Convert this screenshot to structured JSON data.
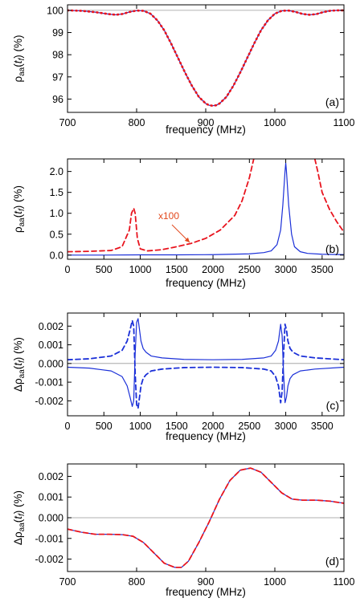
{
  "colors": {
    "red": "#e8141e",
    "blue": "#1a2fd8",
    "annotation": "#e2481c",
    "axis": "#000000",
    "zero": "#999999"
  },
  "chart_data": [
    {
      "id": "a",
      "type": "line",
      "panel_label": "(a)",
      "xlabel": "frequency (MHz)",
      "ylabel_html": "ρ<sub>aa</sub>(<i>t<sub>f</sub></i>) (%)",
      "ylabel": "ρaa(tf) (%)",
      "xlim": [
        700,
        1100
      ],
      "ylim": [
        95.4,
        100.25
      ],
      "xticks": [
        700,
        800,
        900,
        1000,
        1100
      ],
      "yticks": [
        96,
        97,
        98,
        99,
        100
      ],
      "xtick_labels": [
        "700",
        "800",
        "900",
        "1000",
        "1100"
      ],
      "ytick_labels": [
        "96",
        "97",
        "98",
        "99",
        "100"
      ],
      "refline": 100,
      "series": [
        {
          "style": "solid-blue",
          "x": [
            700,
            720,
            740,
            760,
            770,
            780,
            790,
            800,
            810,
            820,
            830,
            840,
            850,
            860,
            870,
            880,
            890,
            900,
            905,
            910,
            915,
            920,
            930,
            940,
            950,
            960,
            970,
            980,
            990,
            1000,
            1010,
            1020,
            1030,
            1040,
            1050,
            1060,
            1070,
            1080,
            1090,
            1100
          ],
          "values": [
            100,
            99.98,
            99.92,
            99.83,
            99.8,
            99.84,
            99.93,
            99.99,
            99.98,
            99.85,
            99.55,
            99.1,
            98.5,
            97.85,
            97.2,
            96.6,
            96.1,
            95.8,
            95.72,
            95.7,
            95.72,
            95.8,
            96.1,
            96.6,
            97.2,
            97.85,
            98.5,
            99.1,
            99.55,
            99.85,
            99.98,
            99.99,
            99.93,
            99.84,
            99.8,
            99.83,
            99.92,
            99.98,
            100,
            100
          ]
        },
        {
          "style": "dotted-red",
          "x": [
            700,
            720,
            740,
            760,
            770,
            780,
            790,
            800,
            810,
            820,
            830,
            840,
            850,
            860,
            870,
            880,
            890,
            900,
            905,
            910,
            915,
            920,
            930,
            940,
            950,
            960,
            970,
            980,
            990,
            1000,
            1010,
            1020,
            1030,
            1040,
            1050,
            1060,
            1070,
            1080,
            1090,
            1100
          ],
          "values": [
            100,
            99.98,
            99.92,
            99.83,
            99.8,
            99.84,
            99.93,
            99.99,
            99.98,
            99.85,
            99.55,
            99.1,
            98.5,
            97.85,
            97.2,
            96.6,
            96.1,
            95.8,
            95.72,
            95.7,
            95.72,
            95.8,
            96.1,
            96.6,
            97.2,
            97.85,
            98.5,
            99.1,
            99.55,
            99.85,
            99.98,
            99.99,
            99.93,
            99.84,
            99.8,
            99.83,
            99.92,
            99.98,
            100,
            100
          ]
        }
      ]
    },
    {
      "id": "b",
      "type": "line",
      "panel_label": "(b)",
      "xlabel": "frequency (MHz)",
      "ylabel_html": "ρ<sub>aa</sub>(<i>t<sub>f</sub></i>) (%)",
      "ylabel": "ρaa(tf) (%)",
      "xlim": [
        0,
        3800
      ],
      "ylim": [
        -0.1,
        2.3
      ],
      "xticks": [
        0,
        500,
        1000,
        1500,
        2000,
        2500,
        3000,
        3500
      ],
      "yticks": [
        0,
        0.5,
        1.0,
        1.5,
        2.0
      ],
      "xtick_labels": [
        "0",
        "500",
        "1000",
        "1500",
        "2000",
        "2500",
        "3000",
        "3500"
      ],
      "ytick_labels": [
        "0.0",
        "0.5",
        "1.0",
        "1.5",
        "2.0"
      ],
      "annotation": "x100",
      "series": [
        {
          "style": "dashed-red",
          "x": [
            0,
            300,
            600,
            750,
            850,
            880,
            910,
            930,
            960,
            1000,
            1100,
            1300,
            1500,
            1700,
            1900,
            2100,
            2300,
            2400,
            2500,
            2560,
            2600,
            3400,
            3440,
            3500,
            3600,
            3700,
            3800
          ],
          "values": [
            0.08,
            0.09,
            0.11,
            0.2,
            0.6,
            1.0,
            1.12,
            1.0,
            0.4,
            0.15,
            0.1,
            0.13,
            0.2,
            0.28,
            0.4,
            0.6,
            0.95,
            1.3,
            1.85,
            2.3,
            null,
            2.3,
            2.0,
            1.5,
            1.1,
            0.8,
            0.55
          ]
        },
        {
          "style": "solid-blue",
          "x": [
            0,
            500,
            1000,
            1500,
            2000,
            2500,
            2700,
            2800,
            2880,
            2930,
            2960,
            2990,
            3000,
            3010,
            3040,
            3080,
            3120,
            3200,
            3300,
            3500,
            3800
          ],
          "values": [
            0,
            0,
            0.005,
            0.005,
            0.01,
            0.03,
            0.06,
            0.1,
            0.25,
            0.6,
            1.2,
            2.0,
            2.2,
            2.0,
            1.2,
            0.5,
            0.2,
            0.08,
            0.04,
            0.02,
            0.01
          ]
        }
      ]
    },
    {
      "id": "c",
      "type": "line",
      "panel_label": "(c)",
      "xlabel": "frequency (MHz)",
      "ylabel_html": "Δρ<sub>aa</sub>(<i>t<sub>f</sub></i>) (%)",
      "ylabel": "Δρaa(tf) (%)",
      "xlim": [
        0,
        3800
      ],
      "ylim": [
        -0.0028,
        0.0027
      ],
      "xticks": [
        0,
        500,
        1000,
        1500,
        2000,
        2500,
        3000,
        3500
      ],
      "yticks": [
        -0.002,
        -0.001,
        0.0,
        0.001,
        0.002
      ],
      "xtick_labels": [
        "0",
        "500",
        "1000",
        "1500",
        "2000",
        "2500",
        "3000",
        "3500"
      ],
      "ytick_labels": [
        "-0.002",
        "-0.001",
        "0.000",
        "0.001",
        "0.002"
      ],
      "refline": 0,
      "series": [
        {
          "style": "solid-blue",
          "x": [
            0,
            300,
            600,
            750,
            820,
            860,
            890,
            910,
            930,
            950,
            970,
            990,
            1010,
            1040,
            1080,
            1150,
            1300,
            1600,
            2000,
            2400,
            2700,
            2800,
            2860,
            2900,
            2930,
            2950,
            2970,
            2990,
            3010,
            3030,
            3060,
            3100,
            3200,
            3400,
            3800
          ],
          "values": [
            -0.0002,
            -0.00025,
            -0.0004,
            -0.0007,
            -0.0012,
            -0.0018,
            -0.0023,
            -0.002,
            0.0005,
            0.0022,
            0.0024,
            0.0018,
            0.0012,
            0.0008,
            0.0006,
            0.0004,
            0.0003,
            0.00022,
            0.0002,
            0.00022,
            0.0003,
            0.0004,
            0.0007,
            0.0012,
            0.0021,
            0.0015,
            -0.0005,
            -0.0021,
            -0.0018,
            -0.0012,
            -0.0008,
            -0.0006,
            -0.0004,
            -0.0003,
            -0.0002
          ]
        },
        {
          "style": "dashed-blue",
          "x": [
            0,
            300,
            600,
            750,
            820,
            860,
            890,
            910,
            930,
            950,
            970,
            990,
            1010,
            1040,
            1080,
            1150,
            1300,
            1600,
            2000,
            2400,
            2700,
            2800,
            2860,
            2900,
            2930,
            2950,
            2970,
            2990,
            3010,
            3030,
            3060,
            3100,
            3200,
            3400,
            3800
          ],
          "values": [
            0.0002,
            0.00025,
            0.0004,
            0.0007,
            0.0012,
            0.0018,
            0.0023,
            0.002,
            -0.0005,
            -0.0022,
            -0.0024,
            -0.0018,
            -0.0012,
            -0.0008,
            -0.0006,
            -0.0004,
            -0.0003,
            -0.00022,
            -0.0002,
            -0.00022,
            -0.0003,
            -0.0004,
            -0.0007,
            -0.0012,
            -0.0021,
            -0.0015,
            0.0005,
            0.0021,
            0.0018,
            0.0012,
            0.0008,
            0.0006,
            0.0004,
            0.0003,
            0.0002
          ]
        }
      ]
    },
    {
      "id": "d",
      "type": "line",
      "panel_label": "(d)",
      "xlabel": "frequency (MHz)",
      "ylabel_html": "Δρ<sub>aa</sub>(<i>t<sub>f</sub></i>) (%)",
      "ylabel": "Δρaa(tf) (%)",
      "xlim": [
        700,
        1100
      ],
      "ylim": [
        -0.0026,
        0.0026
      ],
      "xticks": [
        700,
        800,
        900,
        1000,
        1100
      ],
      "yticks": [
        -0.002,
        -0.001,
        0.0,
        0.001,
        0.002
      ],
      "xtick_labels": [
        "700",
        "800",
        "900",
        "1000",
        "1100"
      ],
      "ytick_labels": [
        "-0.002",
        "-0.001",
        "0.000",
        "0.001",
        "0.002"
      ],
      "refline": 0,
      "series": [
        {
          "style": "solid-blue",
          "x": [
            700,
            720,
            740,
            760,
            780,
            795,
            810,
            825,
            840,
            855,
            865,
            875,
            890,
            905,
            920,
            935,
            950,
            965,
            980,
            995,
            1010,
            1025,
            1040,
            1060,
            1080,
            1100
          ],
          "values": [
            -0.00055,
            -0.0007,
            -0.0008,
            -0.0008,
            -0.00082,
            -0.0009,
            -0.0012,
            -0.0017,
            -0.0022,
            -0.0024,
            -0.0024,
            -0.0021,
            -0.0012,
            -0.0002,
            0.0009,
            0.0018,
            0.0023,
            0.0024,
            0.0022,
            0.0017,
            0.0012,
            0.0009,
            0.00085,
            0.00085,
            0.0008,
            0.0007
          ]
        },
        {
          "style": "dashed-red",
          "x": [
            700,
            720,
            740,
            760,
            780,
            795,
            810,
            825,
            840,
            855,
            865,
            875,
            890,
            905,
            920,
            935,
            950,
            965,
            980,
            995,
            1010,
            1025,
            1040,
            1060,
            1080,
            1100
          ],
          "values": [
            -0.00055,
            -0.0007,
            -0.0008,
            -0.0008,
            -0.00082,
            -0.0009,
            -0.0012,
            -0.0017,
            -0.0022,
            -0.0024,
            -0.0024,
            -0.0021,
            -0.0012,
            -0.0002,
            0.0009,
            0.0018,
            0.0023,
            0.0024,
            0.0022,
            0.0017,
            0.0012,
            0.0009,
            0.00085,
            0.00085,
            0.0008,
            0.0007
          ]
        }
      ]
    }
  ]
}
